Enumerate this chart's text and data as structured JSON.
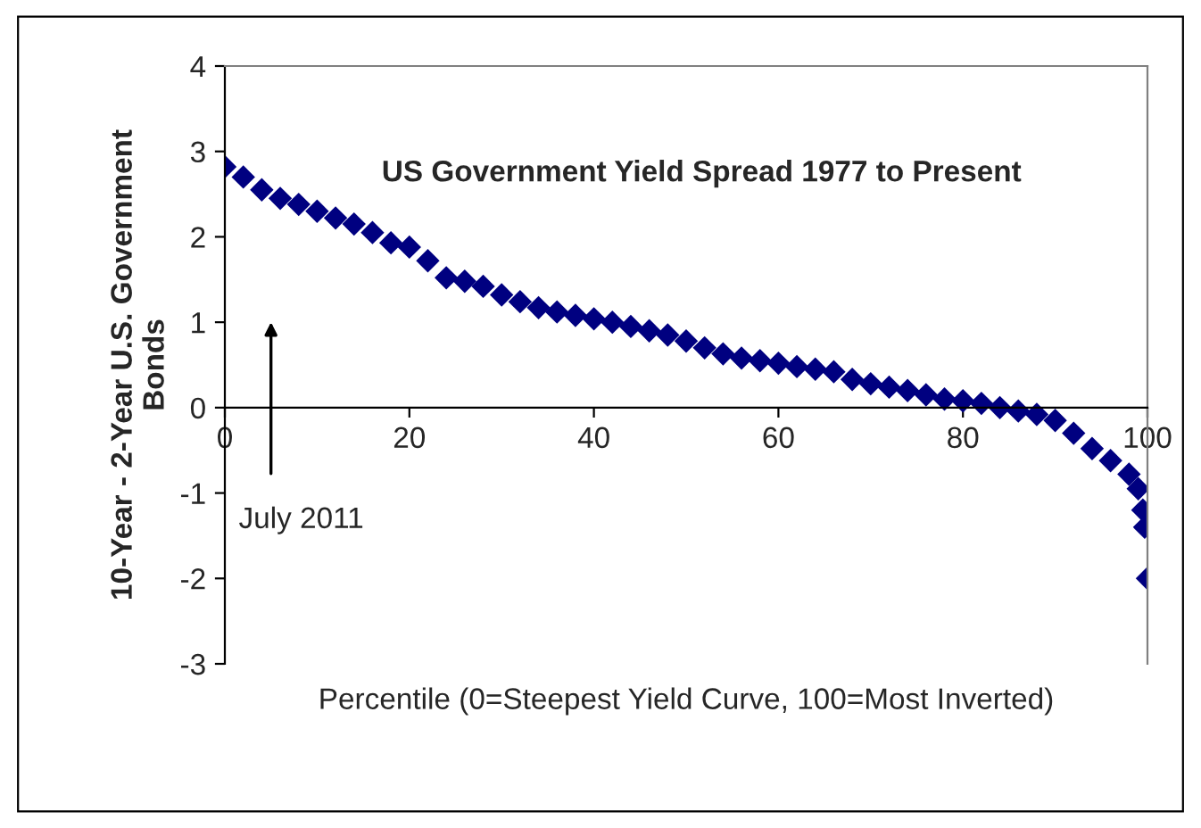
{
  "chart_data": {
    "type": "scatter",
    "title": "US Government Yield Spread 1977 to Present",
    "xlabel": "Percentile (0=Steepest Yield Curve, 100=Most Inverted)",
    "ylabel": "10-Year - 2-Year U.S. Government\nBonds",
    "x": [
      0,
      2,
      4,
      6,
      8,
      10,
      12,
      14,
      16,
      18,
      20,
      22,
      24,
      26,
      28,
      30,
      32,
      34,
      36,
      38,
      40,
      42,
      44,
      46,
      48,
      50,
      52,
      54,
      56,
      58,
      60,
      62,
      64,
      66,
      68,
      70,
      72,
      74,
      76,
      78,
      80,
      82,
      84,
      86,
      88,
      90,
      92,
      94,
      96,
      98,
      99,
      99.5,
      99.7,
      100
    ],
    "series": [
      {
        "color": "#000080",
        "values": [
          2.82,
          2.7,
          2.55,
          2.45,
          2.38,
          2.3,
          2.22,
          2.15,
          2.05,
          1.93,
          1.88,
          1.72,
          1.52,
          1.48,
          1.42,
          1.32,
          1.24,
          1.17,
          1.12,
          1.08,
          1.04,
          1.0,
          0.95,
          0.9,
          0.85,
          0.78,
          0.7,
          0.63,
          0.58,
          0.55,
          0.52,
          0.48,
          0.45,
          0.42,
          0.33,
          0.28,
          0.24,
          0.2,
          0.15,
          0.1,
          0.08,
          0.05,
          0.0,
          -0.04,
          -0.08,
          -0.15,
          -0.3,
          -0.48,
          -0.62,
          -0.78,
          -0.95,
          -1.2,
          -1.4,
          -2.0
        ]
      }
    ],
    "marker": "diamond",
    "grid": false,
    "legend": false,
    "xlim": [
      0,
      100
    ],
    "xticks": [
      0,
      20,
      40,
      60,
      80,
      100
    ],
    "ylim": [
      -3,
      4
    ],
    "yticks": [
      -3,
      -2,
      -1,
      0,
      1,
      2,
      3,
      4
    ],
    "annotations": [
      "July 2011"
    ]
  }
}
